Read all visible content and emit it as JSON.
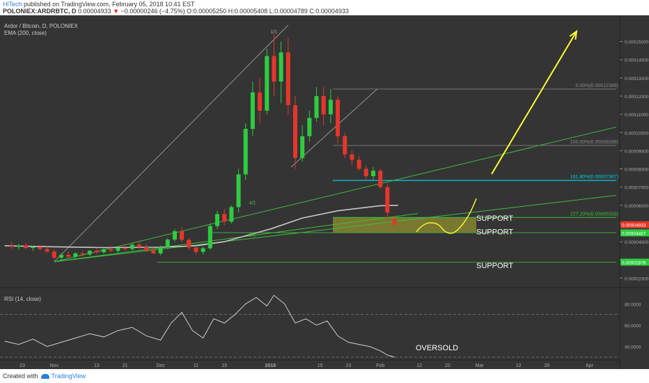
{
  "header": {
    "author": "HiTech",
    "published": "published on TradingView.com, February 05, 2018 10:41 EST",
    "symbol": "POLONIEX:ARDRBTC, D",
    "last": "0.00004933",
    "change_arrow": "▼",
    "change": "−0.00000246 (−4.75%)",
    "ohlc": "O:0.00005250 H:0.00005408 L:0.00004789 C:0.00004933"
  },
  "footer": {
    "created_with": "Created with",
    "brand": "TradingView"
  },
  "colors": {
    "background": "#343434",
    "up": "#2ecc40",
    "down": "#e5362b",
    "ema": "#c8c8c8",
    "trend": "#3fbf3f",
    "fib_cyan": "#00d0e0",
    "arrow": "#ffff33",
    "support_zone": "#8a8a30"
  },
  "chart_data": {
    "type": "candlestick",
    "title": "Ardor / Bitcoin, D, POLONIEX",
    "indicator": "EMA (200, close)",
    "x_ticks": [
      {
        "label": "23",
        "date": "2017-10-23"
      },
      {
        "label": "Nov",
        "date": "2017-11-01"
      },
      {
        "label": "13",
        "date": "2017-11-13"
      },
      {
        "label": "21",
        "date": "2017-11-21"
      },
      {
        "label": "Dec",
        "date": "2017-12-01"
      },
      {
        "label": "11",
        "date": "2017-12-11"
      },
      {
        "label": "19",
        "date": "2017-12-19"
      },
      {
        "label": "2018",
        "date": "2018-01-01"
      },
      {
        "label": "15",
        "date": "2018-01-15"
      },
      {
        "label": "23",
        "date": "2018-01-23"
      },
      {
        "label": "Feb",
        "date": "2018-02-01"
      },
      {
        "label": "12",
        "date": "2018-02-12"
      },
      {
        "label": "20",
        "date": "2018-02-20"
      },
      {
        "label": "Mar",
        "date": "2018-03-01"
      },
      {
        "label": "12",
        "date": "2018-03-12"
      },
      {
        "label": "20",
        "date": "2018-03-20"
      },
      {
        "label": "Apr",
        "date": "2018-04-01"
      }
    ],
    "y_ticks": [
      "0.00015000",
      "0.00014000",
      "0.00013000",
      "0.00012000",
      "0.00011000",
      "0.00010000",
      "0.00009000",
      "0.00008000",
      "0.00007000",
      "0.00006000",
      "0.00005000",
      "0.00004000",
      "0.00003000",
      "0.00002000"
    ],
    "ylim": [
      1.9e-05,
      0.000164
    ],
    "price_badges": [
      {
        "value": 4.933e-05,
        "label": "0.00004933",
        "color": "#e5362b"
      },
      {
        "value": 4.487e-05,
        "label": "0.00004487",
        "color": "#2ecc40"
      },
      {
        "value": 2.878e-05,
        "label": "0.00002878",
        "color": "#2ecc40"
      }
    ],
    "fib_labels": [
      {
        "value": 0.00012389,
        "label": "0.00%(0.00012389)"
      },
      {
        "value": 9.289e-05,
        "label": "100.00%(0.00009289)"
      },
      {
        "value": 7.367e-05,
        "label": "161.80%(0.00007367)"
      },
      {
        "value": 5.333e-05,
        "label": "227.20%(0.00005333)"
      }
    ],
    "annotations": [
      {
        "text": "1/1",
        "date": "2018-01-01",
        "value": 0.0001545
      },
      {
        "text": "4/1",
        "date": "2017-12-26",
        "value": 6.05e-05
      },
      {
        "text": "8/1",
        "date": "2017-12-26",
        "value": 4.3e-05
      },
      {
        "text": "SUPPORT",
        "date": "2018-02-17",
        "value": 5.15e-05
      },
      {
        "text": "SUPPORT",
        "date": "2018-02-17",
        "value": 4.4e-05
      },
      {
        "text": "SUPPORT",
        "date": "2018-02-17",
        "value": 2.55e-05
      }
    ],
    "ohlc_series": [
      {
        "date": "2017-10-20",
        "o": 3.78e-05,
        "h": 3.98e-05,
        "l": 3.6e-05,
        "c": 3.72e-05
      },
      {
        "date": "2017-10-22",
        "o": 3.72e-05,
        "h": 3.88e-05,
        "l": 3.56e-05,
        "c": 3.8e-05
      },
      {
        "date": "2017-10-24",
        "o": 3.8e-05,
        "h": 3.92e-05,
        "l": 3.58e-05,
        "c": 3.66e-05
      },
      {
        "date": "2017-10-26",
        "o": 3.66e-05,
        "h": 3.78e-05,
        "l": 3.5e-05,
        "c": 3.71e-05
      },
      {
        "date": "2017-10-28",
        "o": 3.71e-05,
        "h": 3.82e-05,
        "l": 3.52e-05,
        "c": 3.6e-05
      },
      {
        "date": "2017-10-30",
        "o": 3.6e-05,
        "h": 3.72e-05,
        "l": 3.4e-05,
        "c": 3.46e-05
      },
      {
        "date": "2017-11-01",
        "o": 3.46e-05,
        "h": 3.6e-05,
        "l": 3e-05,
        "c": 3.12e-05
      },
      {
        "date": "2017-11-03",
        "o": 3.12e-05,
        "h": 3.36e-05,
        "l": 2.92e-05,
        "c": 3.28e-05
      },
      {
        "date": "2017-11-05",
        "o": 3.28e-05,
        "h": 3.46e-05,
        "l": 3.1e-05,
        "c": 3.18e-05
      },
      {
        "date": "2017-11-07",
        "o": 3.18e-05,
        "h": 3.42e-05,
        "l": 3.04e-05,
        "c": 3.36e-05
      },
      {
        "date": "2017-11-09",
        "o": 3.36e-05,
        "h": 3.52e-05,
        "l": 3.2e-05,
        "c": 3.3e-05
      },
      {
        "date": "2017-11-11",
        "o": 3.3e-05,
        "h": 3.56e-05,
        "l": 3.22e-05,
        "c": 3.5e-05
      },
      {
        "date": "2017-11-13",
        "o": 3.5e-05,
        "h": 3.68e-05,
        "l": 3.32e-05,
        "c": 3.42e-05
      },
      {
        "date": "2017-11-15",
        "o": 3.42e-05,
        "h": 3.66e-05,
        "l": 3.34e-05,
        "c": 3.58e-05
      },
      {
        "date": "2017-11-17",
        "o": 3.58e-05,
        "h": 3.76e-05,
        "l": 3.42e-05,
        "c": 3.5e-05
      },
      {
        "date": "2017-11-19",
        "o": 3.5e-05,
        "h": 3.72e-05,
        "l": 3.4e-05,
        "c": 3.66e-05
      },
      {
        "date": "2017-11-21",
        "o": 3.66e-05,
        "h": 3.86e-05,
        "l": 3.5e-05,
        "c": 3.6e-05
      },
      {
        "date": "2017-11-23",
        "o": 3.6e-05,
        "h": 3.92e-05,
        "l": 3.52e-05,
        "c": 3.84e-05
      },
      {
        "date": "2017-11-25",
        "o": 3.84e-05,
        "h": 3.98e-05,
        "l": 3.6e-05,
        "c": 3.7e-05
      },
      {
        "date": "2017-11-27",
        "o": 3.7e-05,
        "h": 3.88e-05,
        "l": 3.44e-05,
        "c": 3.52e-05
      },
      {
        "date": "2017-11-29",
        "o": 3.52e-05,
        "h": 3.7e-05,
        "l": 3.3e-05,
        "c": 3.36e-05
      },
      {
        "date": "2017-12-01",
        "o": 3.36e-05,
        "h": 3.78e-05,
        "l": 3.26e-05,
        "c": 3.7e-05
      },
      {
        "date": "2017-12-03",
        "o": 3.7e-05,
        "h": 4.2e-05,
        "l": 3.6e-05,
        "c": 4.12e-05
      },
      {
        "date": "2017-12-05",
        "o": 4.12e-05,
        "h": 4.7e-05,
        "l": 4e-05,
        "c": 4.58e-05
      },
      {
        "date": "2017-12-07",
        "o": 4.58e-05,
        "h": 4.8e-05,
        "l": 4e-05,
        "c": 4.1e-05
      },
      {
        "date": "2017-12-09",
        "o": 4.1e-05,
        "h": 4.2e-05,
        "l": 3.56e-05,
        "c": 3.68e-05
      },
      {
        "date": "2017-12-11",
        "o": 3.68e-05,
        "h": 3.8e-05,
        "l": 3.3e-05,
        "c": 3.44e-05
      },
      {
        "date": "2017-12-13",
        "o": 3.44e-05,
        "h": 3.72e-05,
        "l": 3.3e-05,
        "c": 3.64e-05
      },
      {
        "date": "2017-12-15",
        "o": 3.64e-05,
        "h": 5e-05,
        "l": 3.56e-05,
        "c": 4.86e-05
      },
      {
        "date": "2017-12-17",
        "o": 4.86e-05,
        "h": 5.7e-05,
        "l": 4.7e-05,
        "c": 5.52e-05
      },
      {
        "date": "2017-12-19",
        "o": 5.52e-05,
        "h": 5.8e-05,
        "l": 4.9e-05,
        "c": 5.1e-05
      },
      {
        "date": "2017-12-21",
        "o": 5.1e-05,
        "h": 6e-05,
        "l": 5e-05,
        "c": 5.9e-05
      },
      {
        "date": "2017-12-23",
        "o": 5.9e-05,
        "h": 8e-05,
        "l": 5.6e-05,
        "c": 7.7e-05
      },
      {
        "date": "2017-12-25",
        "o": 7.7e-05,
        "h": 0.000105,
        "l": 7.4e-05,
        "c": 0.000102
      },
      {
        "date": "2017-12-27",
        "o": 0.000102,
        "h": 0.000128,
        "l": 9.8e-05,
        "c": 0.000122
      },
      {
        "date": "2017-12-29",
        "o": 0.000122,
        "h": 0.00013,
        "l": 0.000105,
        "c": 0.000112
      },
      {
        "date": "2017-12-31",
        "o": 0.000112,
        "h": 0.000146,
        "l": 0.00011,
        "c": 0.000142
      },
      {
        "date": "2018-01-02",
        "o": 0.000142,
        "h": 0.000154,
        "l": 0.00012,
        "c": 0.000128
      },
      {
        "date": "2018-01-04",
        "o": 0.000128,
        "h": 0.00015,
        "l": 0.000116,
        "c": 0.000144
      },
      {
        "date": "2018-01-06",
        "o": 0.000144,
        "h": 0.000152,
        "l": 0.00011,
        "c": 0.000115
      },
      {
        "date": "2018-01-08",
        "o": 0.000115,
        "h": 0.00012,
        "l": 8e-05,
        "c": 8.6e-05
      },
      {
        "date": "2018-01-10",
        "o": 8.6e-05,
        "h": 0.000104,
        "l": 8.4e-05,
        "c": 9.8e-05
      },
      {
        "date": "2018-01-12",
        "o": 9.8e-05,
        "h": 0.000112,
        "l": 9.5e-05,
        "c": 0.000108
      },
      {
        "date": "2018-01-14",
        "o": 0.000108,
        "h": 0.000125,
        "l": 0.000106,
        "c": 0.00012
      },
      {
        "date": "2018-01-16",
        "o": 0.00012,
        "h": 0.000125,
        "l": 0.000104,
        "c": 0.00011
      },
      {
        "date": "2018-01-18",
        "o": 0.00011,
        "h": 0.000124,
        "l": 0.000105,
        "c": 0.000118
      },
      {
        "date": "2018-01-20",
        "o": 0.000118,
        "h": 0.00012,
        "l": 9.4e-05,
        "c": 9.8e-05
      },
      {
        "date": "2018-01-22",
        "o": 9.8e-05,
        "h": 0.0001,
        "l": 8.6e-05,
        "c": 8.8e-05
      },
      {
        "date": "2018-01-24",
        "o": 8.8e-05,
        "h": 9e-05,
        "l": 8.2e-05,
        "c": 8.5e-05
      },
      {
        "date": "2018-01-26",
        "o": 8.5e-05,
        "h": 8.7e-05,
        "l": 7.9e-05,
        "c": 8e-05
      },
      {
        "date": "2018-01-28",
        "o": 8e-05,
        "h": 8.2e-05,
        "l": 7.4e-05,
        "c": 7.6e-05
      },
      {
        "date": "2018-01-30",
        "o": 7.6e-05,
        "h": 8.1e-05,
        "l": 7.4e-05,
        "c": 7.9e-05
      },
      {
        "date": "2018-02-01",
        "o": 7.9e-05,
        "h": 8e-05,
        "l": 6.9e-05,
        "c": 7e-05
      },
      {
        "date": "2018-02-03",
        "o": 7e-05,
        "h": 7.2e-05,
        "l": 5.2e-05,
        "c": 5.6e-05
      },
      {
        "date": "2018-02-05",
        "o": 5.25e-05,
        "h": 5.408e-05,
        "l": 4.789e-05,
        "c": 4.933e-05
      }
    ],
    "ema_series": [
      {
        "date": "2017-10-18",
        "value": 3.78e-05
      },
      {
        "date": "2017-11-01",
        "value": 3.72e-05
      },
      {
        "date": "2017-11-15",
        "value": 3.68e-05
      },
      {
        "date": "2017-12-01",
        "value": 3.7e-05
      },
      {
        "date": "2017-12-11",
        "value": 3.78e-05
      },
      {
        "date": "2017-12-19",
        "value": 4e-05
      },
      {
        "date": "2018-01-01",
        "value": 4.7e-05
      },
      {
        "date": "2018-01-10",
        "value": 5.3e-05
      },
      {
        "date": "2018-01-20",
        "value": 5.7e-05
      },
      {
        "date": "2018-02-01",
        "value": 5.98e-05
      },
      {
        "date": "2018-02-06",
        "value": 6e-05
      }
    ],
    "rsi": {
      "title": "RSI (14, close)",
      "y_ticks": [
        "80.0000",
        "60.0000",
        "40.0000"
      ],
      "ylim": [
        28,
        92
      ],
      "bands": [
        70,
        30
      ],
      "annotation": "OVERSOLD",
      "series": [
        {
          "date": "2017-10-18",
          "value": 45
        },
        {
          "date": "2017-10-22",
          "value": 42
        },
        {
          "date": "2017-10-26",
          "value": 47
        },
        {
          "date": "2017-10-30",
          "value": 40
        },
        {
          "date": "2017-11-03",
          "value": 44
        },
        {
          "date": "2017-11-07",
          "value": 48
        },
        {
          "date": "2017-11-11",
          "value": 52
        },
        {
          "date": "2017-11-15",
          "value": 49
        },
        {
          "date": "2017-11-19",
          "value": 55
        },
        {
          "date": "2017-11-23",
          "value": 58
        },
        {
          "date": "2017-11-27",
          "value": 50
        },
        {
          "date": "2017-12-01",
          "value": 46
        },
        {
          "date": "2017-12-04",
          "value": 62
        },
        {
          "date": "2017-12-07",
          "value": 72
        },
        {
          "date": "2017-12-10",
          "value": 55
        },
        {
          "date": "2017-12-13",
          "value": 48
        },
        {
          "date": "2017-12-16",
          "value": 66
        },
        {
          "date": "2017-12-19",
          "value": 62
        },
        {
          "date": "2017-12-22",
          "value": 70
        },
        {
          "date": "2017-12-25",
          "value": 80
        },
        {
          "date": "2017-12-28",
          "value": 86
        },
        {
          "date": "2017-12-31",
          "value": 78
        },
        {
          "date": "2018-01-02",
          "value": 88
        },
        {
          "date": "2018-01-05",
          "value": 80
        },
        {
          "date": "2018-01-08",
          "value": 62
        },
        {
          "date": "2018-01-11",
          "value": 66
        },
        {
          "date": "2018-01-14",
          "value": 60
        },
        {
          "date": "2018-01-17",
          "value": 64
        },
        {
          "date": "2018-01-20",
          "value": 50
        },
        {
          "date": "2018-01-23",
          "value": 44
        },
        {
          "date": "2018-01-26",
          "value": 42
        },
        {
          "date": "2018-01-29",
          "value": 40
        },
        {
          "date": "2018-02-01",
          "value": 36
        },
        {
          "date": "2018-02-03",
          "value": 32
        },
        {
          "date": "2018-02-05",
          "value": 30
        }
      ]
    }
  }
}
